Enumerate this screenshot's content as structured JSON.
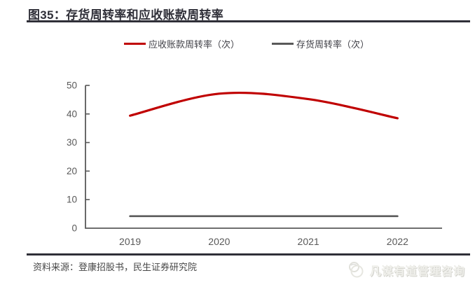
{
  "chart_data": {
    "type": "line",
    "title": "图35：存货周转率和应收账款周转率",
    "categories": [
      "2019",
      "2020",
      "2021",
      "2022"
    ],
    "series": [
      {
        "name": "应收账款周转率（次）",
        "color": "#c00000",
        "smooth": true,
        "stroke_width": 3.2,
        "values": [
          39.4,
          47.1,
          45.2,
          38.5
        ]
      },
      {
        "name": "存货周转率（次）",
        "color": "#595959",
        "smooth": false,
        "stroke_width": 2.6,
        "values": [
          4.2,
          4.2,
          4.2,
          4.2
        ]
      }
    ],
    "xlabel": "",
    "ylabel": "",
    "ylim": [
      0,
      50
    ],
    "yticks": [
      0,
      10,
      20,
      30,
      40,
      50
    ],
    "grid": false,
    "legend_position": "top-center",
    "axis_color": "#595959",
    "tick_label_color": "#595959"
  },
  "footer": {
    "source": "资料来源：登康招股书，民生证券研究院",
    "watermark": "凡谋有道管理咨询"
  },
  "theme": {
    "accent_red": "#c00000",
    "rule_dark": "#2f2f38",
    "text_gray": "#595959",
    "watermark_gray": "#e9e9e5"
  }
}
